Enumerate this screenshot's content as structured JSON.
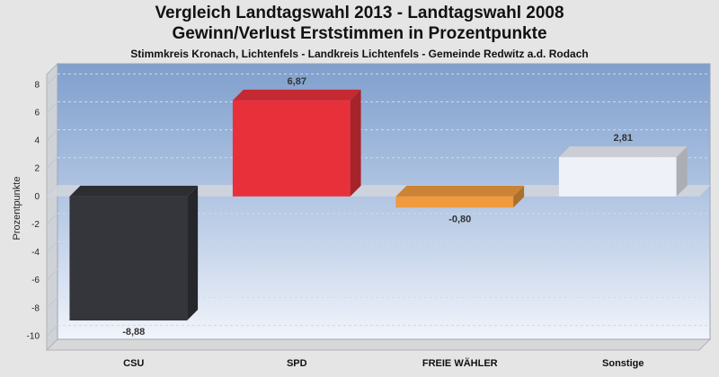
{
  "header": {
    "title_line1": "Vergleich Landtagswahl 2013 - Landtagswahl 2008",
    "title_line2": "Gewinn/Verlust Erststimmen in Prozentpunkte",
    "subtitle": "Stimmkreis Kronach, Lichtenfels - Landkreis Lichtenfels - Gemeinde Redwitz a.d. Rodach"
  },
  "chart_data": {
    "type": "bar",
    "title": "Vergleich Landtagswahl 2013 - Landtagswahl 2008 / Gewinn/Verlust Erststimmen in Prozentpunkte",
    "subtitle": "Stimmkreis Kronach, Lichtenfels - Landkreis Lichtenfels - Gemeinde Redwitz a.d. Rodach",
    "xlabel": "",
    "ylabel": "Prozentpunkte",
    "categories": [
      "CSU",
      "SPD",
      "FREIE WÄHLER",
      "Sonstige"
    ],
    "values": [
      -8.88,
      6.87,
      -0.8,
      2.81
    ],
    "value_labels": [
      "-8,88",
      "6,87",
      "-0,80",
      "2,81"
    ],
    "ylim": [
      -11,
      9.5
    ],
    "yticks": [
      8,
      6,
      4,
      2,
      0,
      -2,
      -4,
      -6,
      -8,
      -10
    ],
    "grid": true,
    "legend": "none",
    "colors": [
      "#34363b",
      "#e8303b",
      "#ef9a3e",
      "#eef1f8"
    ],
    "background": {
      "plot_top": "#7f9fcd",
      "plot_bottom": "#f1f4fa",
      "page": "#e5e5e5"
    }
  }
}
